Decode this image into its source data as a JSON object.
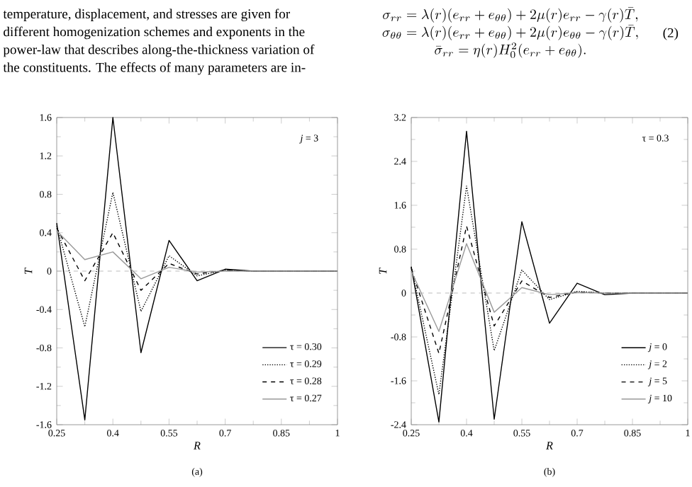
{
  "chart_data": [
    {
      "type": "line",
      "xlabel": "*R*",
      "ylabel": "*T*",
      "x": [
        0.25,
        0.325,
        0.4,
        0.475,
        0.55,
        0.625,
        0.7,
        0.775,
        0.85,
        0.925,
        1.0
      ],
      "series": [
        {
          "name": "τ = 0.30",
          "color": "#000000",
          "line_style": "solid",
          "values": [
            0.5,
            -1.55,
            1.6,
            -0.85,
            0.32,
            -0.1,
            0.02,
            0,
            0,
            0,
            0
          ]
        },
        {
          "name": "τ = 0.29",
          "color": "#000000",
          "line_style": "dotted",
          "values": [
            0.47,
            -0.58,
            0.82,
            -0.42,
            0.16,
            -0.05,
            0.01,
            0,
            0,
            0,
            0
          ]
        },
        {
          "name": "τ = 0.28",
          "color": "#000000",
          "line_style": "dashed",
          "values": [
            0.45,
            -0.1,
            0.4,
            -0.2,
            0.08,
            -0.03,
            0.01,
            0,
            0,
            0,
            0
          ]
        },
        {
          "name": "τ = 0.27",
          "color": "#999999",
          "line_style": "solid",
          "values": [
            0.42,
            0.12,
            0.2,
            -0.08,
            0.04,
            -0.01,
            0,
            0,
            0,
            0,
            0
          ]
        }
      ],
      "xlim": [
        0.25,
        1
      ],
      "xticks": [
        0.25,
        0.4,
        0.55,
        0.7,
        0.85,
        1
      ],
      "ylim": [
        -1.6,
        1.6
      ],
      "yticks": [
        -1.6,
        -1.2,
        -0.8,
        -0.4,
        0,
        0.4,
        0.8,
        1.2,
        1.6
      ],
      "ref_lines": [
        {
          "axis": "y",
          "value": 0,
          "color": "#aaaaaa",
          "line_style": "dashed"
        }
      ],
      "legend": "bottom right",
      "grid": false,
      "annotations": [
        "*j* = 3",
        "(a)",
        "temperature, displacement, and stresses are given for",
        "different homogenization schemes and exponents in the",
        "power-law that describes along-the-thickness variation of",
        "the constituents. The effects of many parameters are in-"
      ]
    },
    {
      "type": "line",
      "xlabel": "*R*",
      "ylabel": "*T*",
      "x": [
        0.25,
        0.325,
        0.4,
        0.475,
        0.55,
        0.625,
        0.7,
        0.775,
        0.85,
        0.925,
        1.0
      ],
      "series": [
        {
          "name": "*j* = 0",
          "color": "#000000",
          "line_style": "solid",
          "values": [
            0.48,
            -2.35,
            2.95,
            -2.3,
            1.3,
            -0.55,
            0.18,
            -0.03,
            0,
            0,
            0
          ]
        },
        {
          "name": "*j* = 2",
          "color": "#000000",
          "line_style": "dotted",
          "values": [
            0.48,
            -1.85,
            1.95,
            -1.05,
            0.42,
            -0.12,
            0.03,
            0,
            0,
            0,
            0
          ]
        },
        {
          "name": "*j* = 5",
          "color": "#000000",
          "line_style": "dashed",
          "values": [
            0.45,
            -1.1,
            1.22,
            -0.6,
            0.22,
            -0.08,
            0.02,
            0,
            0,
            0,
            0
          ]
        },
        {
          "name": "*j* = 10",
          "color": "#999999",
          "line_style": "solid",
          "values": [
            0.4,
            -0.7,
            0.9,
            -0.35,
            0.1,
            -0.03,
            0.01,
            0,
            0,
            0,
            0
          ]
        }
      ],
      "xlim": [
        0.25,
        1
      ],
      "xticks": [
        0.25,
        0.4,
        0.55,
        0.7,
        0.85,
        1
      ],
      "ylim": [
        -2.4,
        3.2
      ],
      "yticks": [
        -2.4,
        -1.6,
        -0.8,
        0,
        0.8,
        1.6,
        2.4,
        3.2
      ],
      "ref_lines": [
        {
          "axis": "y",
          "value": 0,
          "color": "#aaaaaa",
          "line_style": "dashed"
        }
      ],
      "legend": "bottom right",
      "grid": false,
      "annotations": [
        "τ = 0.3",
        "(b)",
        "\\sigma_{rr} = \\lambda(r)(e_{rr} + e_{\\theta\\theta}) + 2\\mu(r)e_{rr} - \\gamma(r)\\bar{T},",
        "\\sigma_{\\theta\\theta} = \\lambda(r)(e_{rr} + e_{\\theta\\theta}) + 2\\mu(r)e_{\\theta\\theta} - \\gamma(r)\\bar{T},",
        "\\bar{\\sigma}_{rr} = \\eta(r)H_{0}^{2}(e_{rr} + e_{\\theta\\theta}).",
        "(2)"
      ]
    }
  ]
}
